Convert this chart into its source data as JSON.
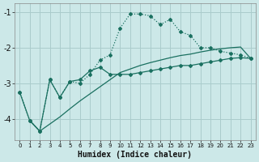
{
  "xlabel": "Humidex (Indice chaleur)",
  "bg_color": "#cce8e8",
  "grid_color": "#aacccc",
  "line_color": "#1a7060",
  "xlim": [
    -0.5,
    23.5
  ],
  "ylim": [
    -4.6,
    -0.75
  ],
  "yticks": [
    -4,
    -3,
    -2,
    -1
  ],
  "xticks": [
    0,
    1,
    2,
    3,
    4,
    5,
    6,
    7,
    8,
    9,
    10,
    11,
    12,
    13,
    14,
    15,
    16,
    17,
    18,
    19,
    20,
    21,
    22,
    23
  ],
  "line1_x": [
    0,
    1,
    2,
    3,
    4,
    5,
    6,
    7,
    8,
    9,
    10,
    11,
    12,
    13,
    14,
    15,
    16,
    17,
    18,
    19,
    20,
    21,
    22,
    23
  ],
  "line1_y": [
    -3.25,
    -4.05,
    -4.35,
    -2.9,
    -3.4,
    -2.95,
    -3.0,
    -2.75,
    -2.35,
    -2.2,
    -1.45,
    -1.05,
    -1.05,
    -1.1,
    -1.35,
    -1.2,
    -1.55,
    -1.65,
    -2.0,
    -2.0,
    -2.1,
    -2.15,
    -2.2,
    -2.3
  ],
  "line2_x": [
    0,
    1,
    2,
    3,
    4,
    5,
    6,
    7,
    8,
    9,
    10,
    11,
    12,
    13,
    14,
    15,
    16,
    17,
    18,
    19,
    20,
    21,
    22,
    23
  ],
  "line2_y": [
    -3.25,
    -4.05,
    -4.35,
    -2.9,
    -3.4,
    -2.95,
    -2.9,
    -2.65,
    -2.55,
    -2.75,
    -2.75,
    -2.75,
    -2.7,
    -2.65,
    -2.6,
    -2.55,
    -2.5,
    -2.5,
    -2.45,
    -2.4,
    -2.35,
    -2.3,
    -2.28,
    -2.3
  ],
  "line3_x": [
    1,
    2,
    3,
    4,
    5,
    6,
    7,
    8,
    9,
    10,
    11,
    12,
    13,
    14,
    15,
    16,
    17,
    18,
    19,
    20,
    21,
    22,
    23
  ],
  "line3_y": [
    -4.05,
    -4.35,
    -4.15,
    -3.95,
    -3.72,
    -3.5,
    -3.3,
    -3.1,
    -2.9,
    -2.7,
    -2.6,
    -2.5,
    -2.42,
    -2.35,
    -2.28,
    -2.22,
    -2.18,
    -2.12,
    -2.07,
    -2.03,
    -2.0,
    -1.98,
    -2.3
  ]
}
